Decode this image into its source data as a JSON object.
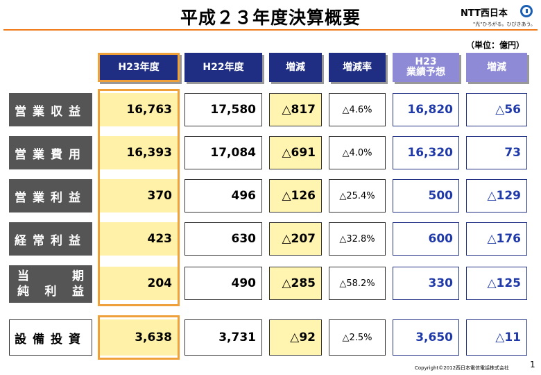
{
  "title": "平成２３年度決算概要",
  "logo": {
    "name": "NTT西日本",
    "tagline": "\"光\"ひろがる。ひびきあう。"
  },
  "unit": "（単位：億円）",
  "headers": {
    "h23": "H23年度",
    "h22": "H22年度",
    "diff": "増減",
    "rate": "増減率",
    "forecast_l1": "H23",
    "forecast_l2": "業績予想",
    "diff2": "増減"
  },
  "rows": [
    {
      "label": "営業収益",
      "h23": "16,763",
      "h22": "17,580",
      "diff": "△817",
      "rate": "△4.6%",
      "forecast": "16,820",
      "diff2": "△56"
    },
    {
      "label": "営業費用",
      "h23": "16,393",
      "h22": "17,084",
      "diff": "△691",
      "rate": "△4.0%",
      "forecast": "16,320",
      "diff2": "73"
    },
    {
      "label": "営業利益",
      "h23": "370",
      "h22": "496",
      "diff": "△126",
      "rate": "△25.4%",
      "forecast": "500",
      "diff2": "△129"
    },
    {
      "label": "経常利益",
      "h23": "423",
      "h22": "630",
      "diff": "△207",
      "rate": "△32.8%",
      "forecast": "600",
      "diff2": "△176"
    },
    {
      "label_l1a": "当",
      "label_l1b": "期",
      "label_l2a": "純",
      "label_l2b": "利",
      "label_l2c": "益",
      "h23": "204",
      "h22": "490",
      "diff": "△285",
      "rate": "△58.2%",
      "forecast": "330",
      "diff2": "△125"
    },
    {
      "label": "設備投資",
      "h23": "3,638",
      "h22": "3,731",
      "diff": "△92",
      "rate": "△2.5%",
      "forecast": "3,650",
      "diff2": "△11"
    }
  ],
  "footer": {
    "copyright": "Copyright©2012西日本電信電話株式会社",
    "page": "1"
  },
  "colors": {
    "navy": "#1f2d82",
    "lavender": "#8e8ad6",
    "orange": "#f0a038",
    "yellow": "#fff2a8",
    "gray": "#555555",
    "blue_text": "#1f3aa8"
  }
}
